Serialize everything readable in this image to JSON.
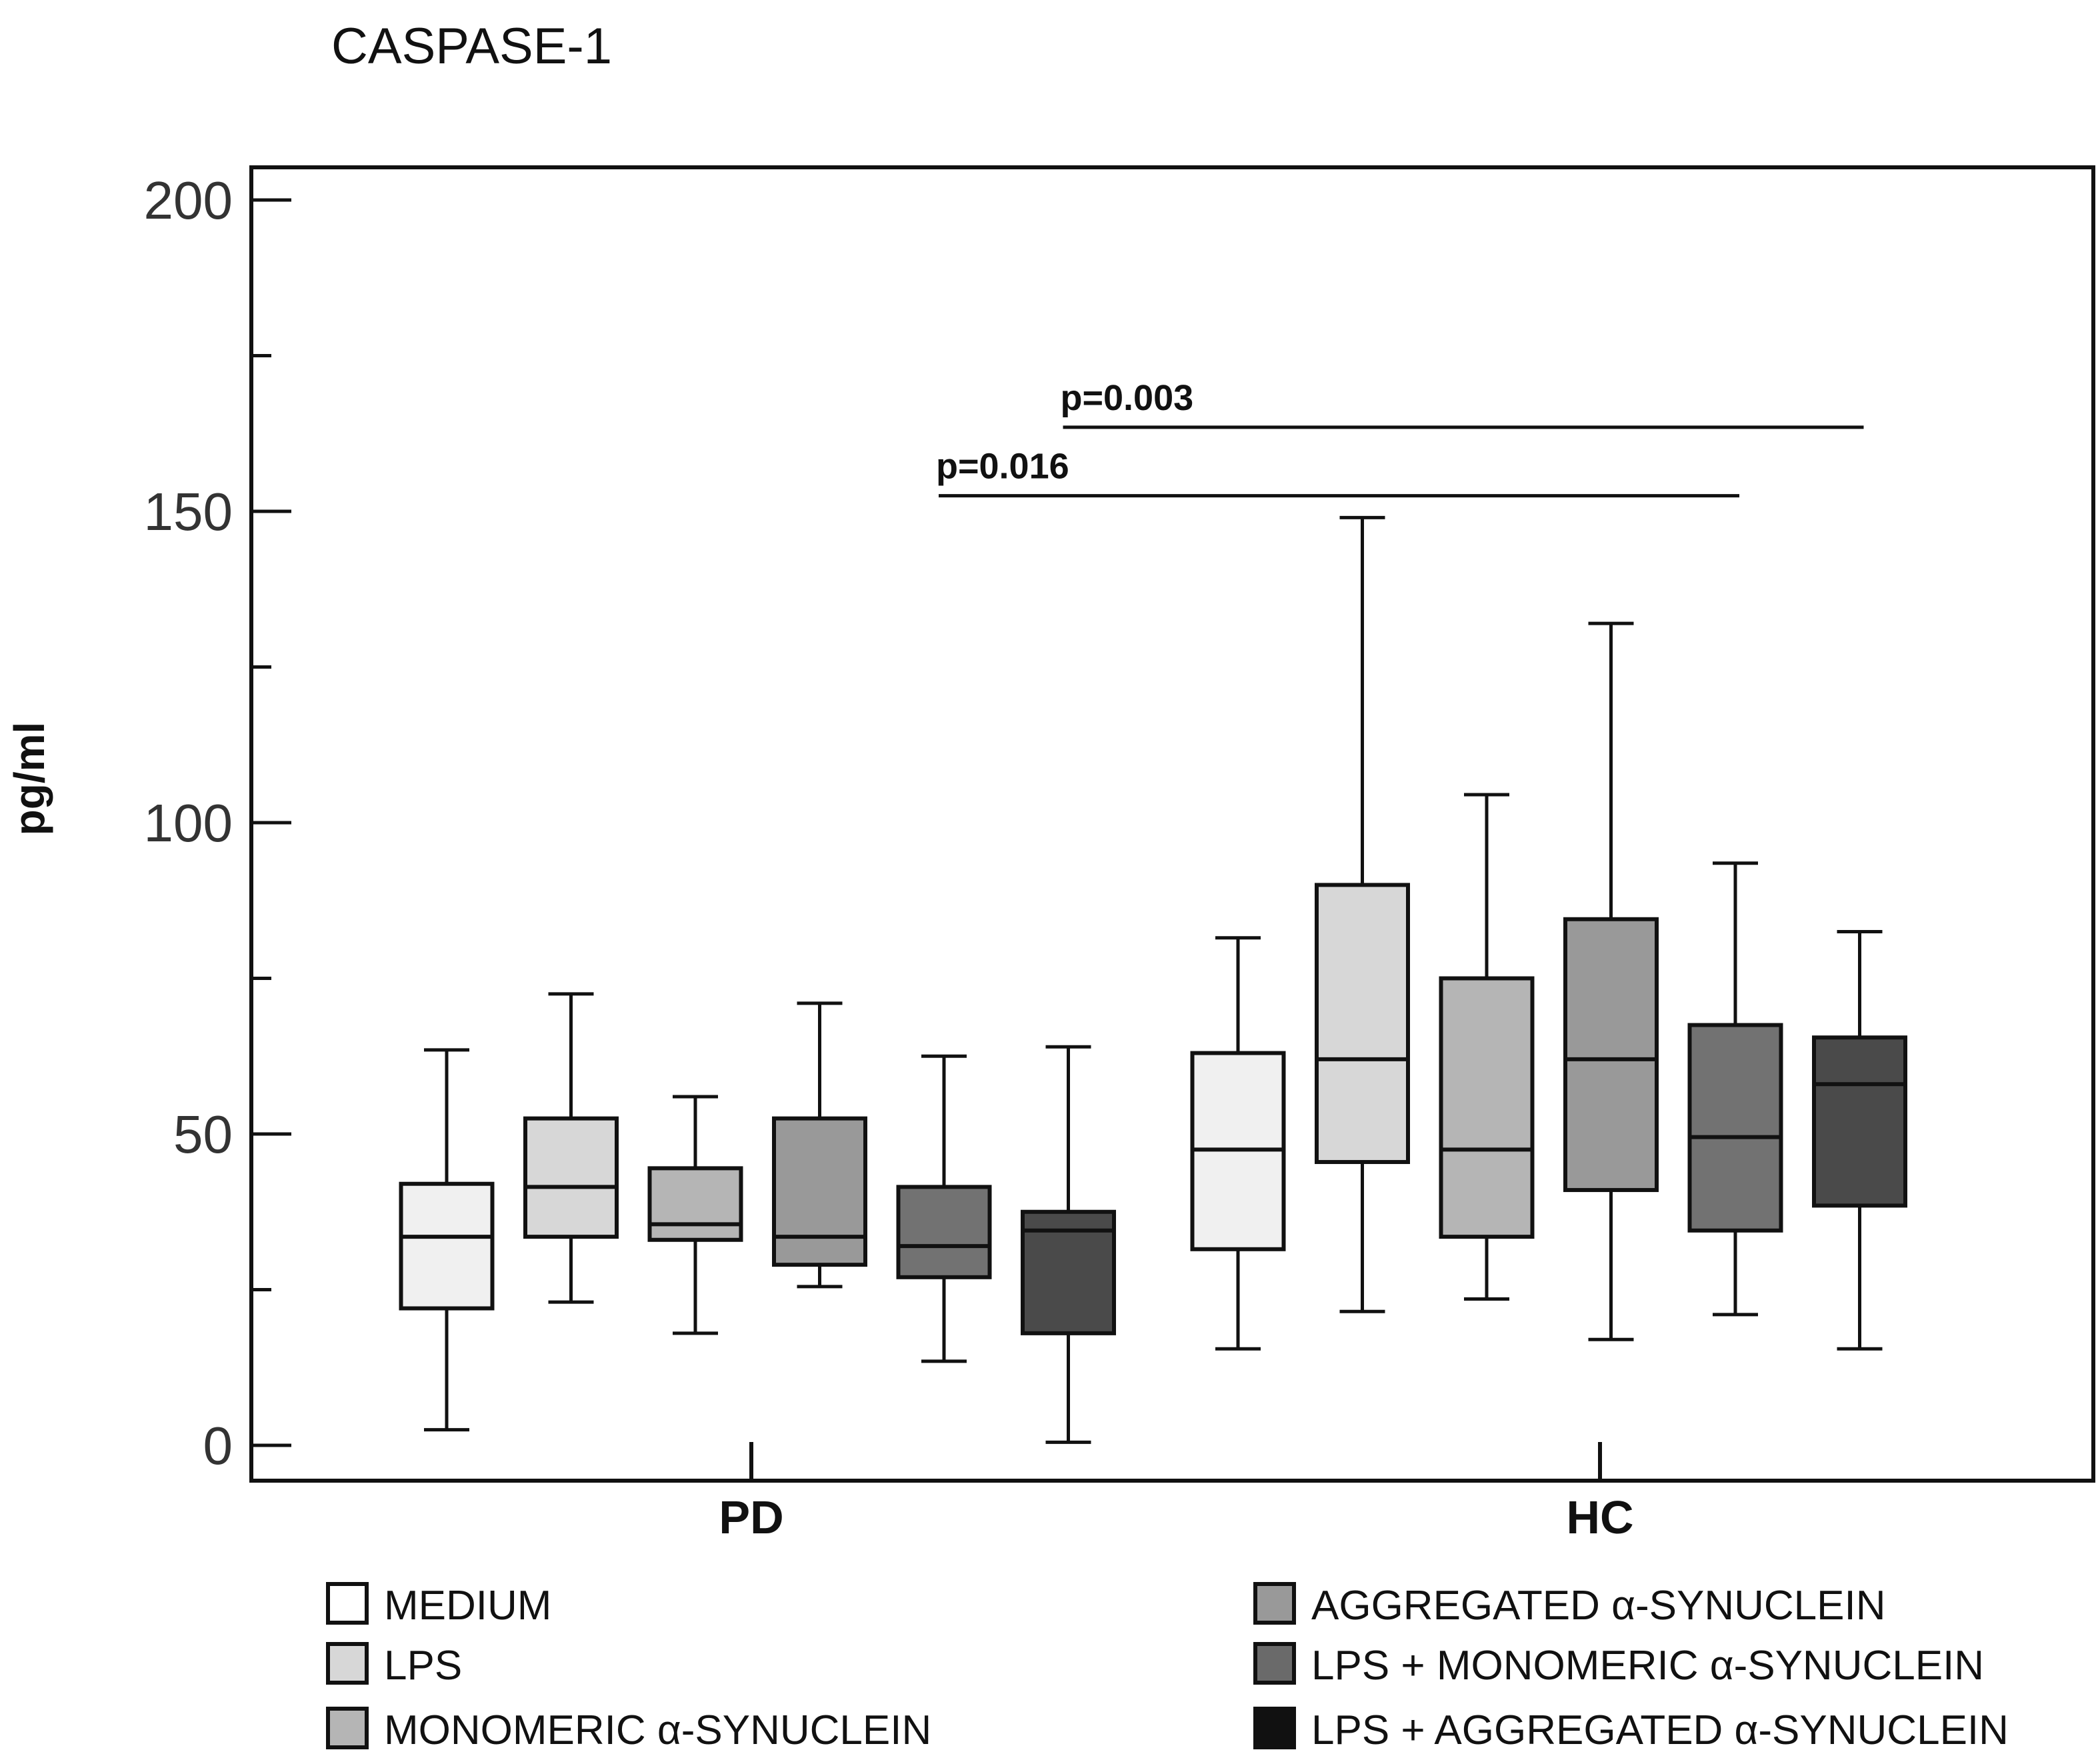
{
  "chart_data": {
    "type": "boxplot",
    "title": "CASPASE-1",
    "ylabel": "pg/ml",
    "xlabel": "",
    "ylim": [
      -5,
      205
    ],
    "yticks": [
      0,
      50,
      100,
      150,
      200
    ],
    "minor_yticks": [
      25,
      75,
      125,
      175
    ],
    "categories": [
      "PD",
      "HC"
    ],
    "series": [
      {
        "name": "MEDIUM",
        "color": "#f0f0f0",
        "boxes": [
          {
            "min": 2.5,
            "q1": 22,
            "median": 33.5,
            "q3": 42,
            "max": 63.5
          },
          {
            "min": 15.5,
            "q1": 31.5,
            "median": 47.5,
            "q3": 63,
            "max": 81.5
          }
        ]
      },
      {
        "name": "LPS",
        "color": "#d7d7d7",
        "boxes": [
          {
            "min": 23,
            "q1": 33.5,
            "median": 41.5,
            "q3": 52.5,
            "max": 72.5
          },
          {
            "min": 21.5,
            "q1": 45.5,
            "median": 62,
            "q3": 90,
            "max": 149
          }
        ]
      },
      {
        "name": "MONOMERIC α-SYNUCLEIN",
        "color": "#b5b5b5",
        "boxes": [
          {
            "min": 18,
            "q1": 33,
            "median": 35.5,
            "q3": 44.5,
            "max": 56
          },
          {
            "min": 23.5,
            "q1": 33.5,
            "median": 47.5,
            "q3": 75,
            "max": 104.5
          }
        ]
      },
      {
        "name": "AGGREGATED α-SYNUCLEIN",
        "color": "#999999",
        "boxes": [
          {
            "min": 25.5,
            "q1": 29,
            "median": 33.5,
            "q3": 52.5,
            "max": 71
          },
          {
            "min": 17,
            "q1": 41,
            "median": 62,
            "q3": 84.5,
            "max": 132
          }
        ]
      },
      {
        "name": "LPS + MONOMERIC α-SYNUCLEIN",
        "color": "#727272",
        "boxes": [
          {
            "min": 13.5,
            "q1": 27,
            "median": 32,
            "q3": 41.5,
            "max": 62.5
          },
          {
            "min": 21,
            "q1": 34.5,
            "median": 49.5,
            "q3": 67.5,
            "max": 93.5
          }
        ]
      },
      {
        "name": "LPS + AGGREGATED α-SYNUCLEIN",
        "color": "#4a4a4a",
        "boxes": [
          {
            "min": 0.5,
            "q1": 18,
            "median": 34.5,
            "q3": 37.5,
            "max": 64
          },
          {
            "min": 15.5,
            "q1": 38.5,
            "median": 58,
            "q3": 65.5,
            "max": 82.5
          }
        ]
      }
    ],
    "annotations": [
      {
        "text": "p=0.003",
        "y": 163.5,
        "from": {
          "category": "PD",
          "series_index": 5
        },
        "to": {
          "category": "HC",
          "series_index": 5
        }
      },
      {
        "text": "p=0.016",
        "y": 152.5,
        "from": {
          "category": "PD",
          "series_index": 4
        },
        "to": {
          "category": "HC",
          "series_index": 4
        }
      }
    ],
    "legend": {
      "position": "bottom",
      "columns": 2
    },
    "legend_swatch_colors": [
      "#ffffff",
      "#d7d7d7",
      "#b5b5b5",
      "#999999",
      "#6a6a6a",
      "#111111"
    ]
  }
}
